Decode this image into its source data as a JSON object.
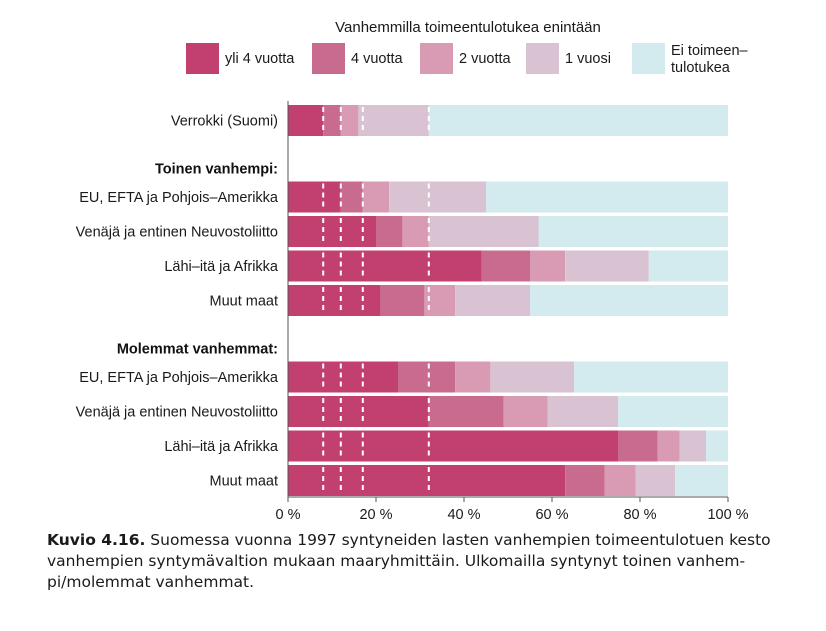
{
  "chart_data": {
    "type": "bar",
    "stacked": "horizontal-100-percent",
    "legend_title": "Vanhemmilla toimeentulotukea enintään",
    "legend_placement": "top",
    "series": [
      {
        "name": "yli 4 vuotta",
        "color": "#c2406f",
        "values": [
          8,
          12,
          20,
          44,
          21,
          25,
          32,
          75,
          63
        ]
      },
      {
        "name": "4 vuotta",
        "color": "#c96b8e",
        "values": [
          4,
          5,
          6,
          11,
          10,
          13,
          17,
          9,
          9
        ]
      },
      {
        "name": "2 vuotta",
        "color": "#d89bb3",
        "values": [
          4,
          6,
          6,
          8,
          7,
          8,
          10,
          5,
          7
        ]
      },
      {
        "name": "1 vuosi",
        "color": "#d9c3d3",
        "values": [
          16,
          22,
          25,
          19,
          17,
          19,
          16,
          6,
          9
        ]
      },
      {
        "name": "Ei toimeen–tulotukea",
        "color": "#d3eaee",
        "values": [
          68,
          55,
          43,
          18,
          45,
          35,
          25,
          5,
          12
        ]
      }
    ],
    "groups": [
      {
        "label": "",
        "rows": [
          "Verrokki (Suomi)"
        ]
      },
      {
        "label": "Toinen vanhempi:",
        "rows": [
          "EU, EFTA ja Pohjois–Amerikka",
          "Venäjä ja entinen Neuvostoliitto",
          "Lähi–itä ja Afrikka",
          "Muut maat"
        ]
      },
      {
        "label": "Molemmat vanhemmat:",
        "rows": [
          "EU, EFTA ja Pohjois–Amerikka",
          "Venäjä ja entinen Neuvostoliitto",
          "Lähi–itä ja Afrikka",
          "Muut maat"
        ]
      }
    ],
    "reference_lines": [
      8,
      12,
      17,
      32
    ],
    "xlim": [
      0,
      100
    ],
    "x_ticks": [
      "0 %",
      "20 %",
      "40 %",
      "60 %",
      "80 %",
      "100 %"
    ],
    "grid": false
  },
  "caption": {
    "label": "Kuvio 4.16.",
    "text": " Suomessa vuonna 1997 syntyneiden lasten vanhempien toimeentulotuen kesto vanhempien syntymävaltion mukaan maaryhmittäin. Ulkomailla syntynyt toinen vanhem-\npi/molemmat vanhemmat."
  }
}
